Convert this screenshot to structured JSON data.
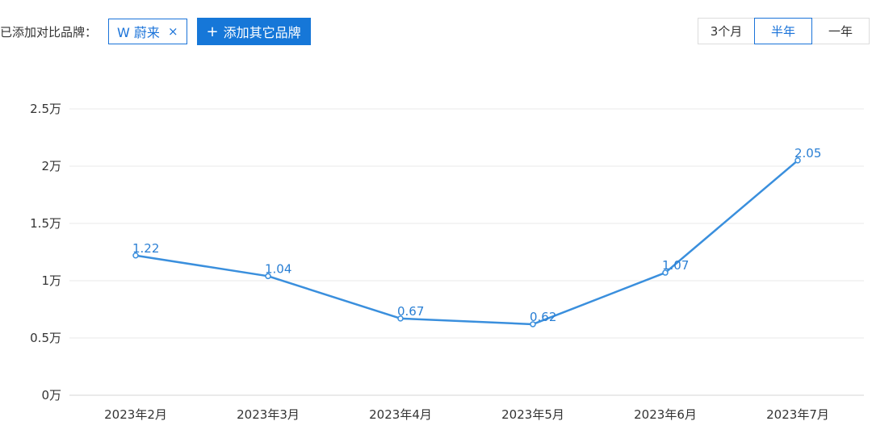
{
  "toolbar": {
    "added_label": "已添加对比品牌：",
    "brand_tag": "W 蔚来",
    "close_glyph": "×",
    "add_button_plus": "+",
    "add_button_label": "添加其它品牌"
  },
  "range": {
    "options": [
      "3个月",
      "半年",
      "一年"
    ],
    "selected": "半年"
  },
  "colors": {
    "accent": "#1677d8",
    "line": "#3a8fdd",
    "grid": "#e8e8e8"
  },
  "chart_data": {
    "type": "line",
    "categories": [
      "2023年2月",
      "2023年3月",
      "2023年4月",
      "2023年5月",
      "2023年6月",
      "2023年7月"
    ],
    "series": [
      {
        "values": [
          1.22,
          1.04,
          0.67,
          0.62,
          1.07,
          2.05
        ]
      }
    ],
    "data_labels": [
      "1.22",
      "1.04",
      "0.67",
      "0.62",
      "1.07",
      "2.05"
    ],
    "yticks": [
      0,
      0.5,
      1,
      1.5,
      2,
      2.5
    ],
    "ytick_labels": [
      "0万",
      "0.5万",
      "1万",
      "1.5万",
      "2万",
      "2.5万"
    ],
    "ylim": [
      0,
      2.5
    ],
    "grid": true,
    "xlabel": "",
    "ylabel": ""
  }
}
